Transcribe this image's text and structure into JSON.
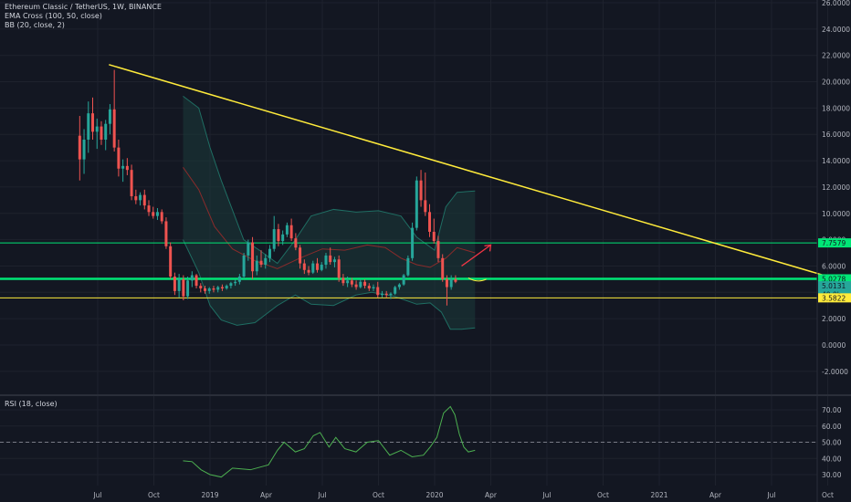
{
  "header": {
    "symbol_title": "Ethereum Classic / TetherUS, 1W, BINANCE",
    "indicator_ema": "EMA Cross (100, 50, close)",
    "indicator_bb": "BB (20, close, 2)",
    "rsi_title": "RSI (18, close)"
  },
  "colors": {
    "background": "#131722",
    "grid": "#1e222d",
    "up_candle": "#26a69a",
    "down_candle": "#ef5350",
    "trendline": "#ffeb3b",
    "support_green": "#00e676",
    "support_yellow": "#ffeb3b",
    "bb_fill": "#1b3a3a",
    "bb_line": "#1f6e63",
    "ema_line": "#8a2b2b",
    "rsi_line": "#4caf50",
    "arrow": "#f23645"
  },
  "chart_data": [
    {
      "type": "candlestick",
      "x_tick_labels": [
        "Jul",
        "Oct",
        "2019",
        "Apr",
        "Jul",
        "Oct",
        "2020",
        "Apr",
        "Jul",
        "Oct",
        "2021",
        "Apr",
        "Jul",
        "Oct"
      ],
      "y_tick_labels": [
        "26.0000",
        "24.0000",
        "22.0000",
        "20.0000",
        "18.0000",
        "16.0000",
        "14.0000",
        "12.0000",
        "10.0000",
        "8.0000",
        "6.0000",
        "4.0000",
        "2.0000",
        "0.0000",
        "-2.0000"
      ],
      "ylim": [
        -2.5,
        26
      ],
      "price_badges": [
        {
          "label": "7.7579",
          "value": 7.7579,
          "color": "#00e676"
        },
        {
          "label": "5.0278",
          "value": 5.0278,
          "color": "#00e676"
        },
        {
          "label": "5.0131",
          "value": 4.5,
          "color": "#26a69a"
        },
        {
          "label": "40 0h",
          "value": 3.85,
          "color": "#26a69a"
        },
        {
          "label": "3.5822",
          "value": 3.5822,
          "color": "#ffeb3b"
        }
      ],
      "horizontal_lines": [
        {
          "value": 7.7579,
          "color": "#00e676",
          "width": 1
        },
        {
          "value": 5.0278,
          "color": "#00e676",
          "width": 2.5
        },
        {
          "value": 3.5822,
          "color": "#ffeb3b",
          "width": 1
        }
      ],
      "trendline": {
        "from": [
          2018.55,
          21.3
        ],
        "to": [
          2021.95,
          4.2
        ]
      },
      "candles_weekly_from": 2018.42,
      "ohlc": [
        [
          15.9,
          17.4,
          12.5,
          14.1
        ],
        [
          14.1,
          16.4,
          13.0,
          15.6
        ],
        [
          15.6,
          18.5,
          14.6,
          17.6
        ],
        [
          17.6,
          18.8,
          15.6,
          16.2
        ],
        [
          16.2,
          17.2,
          14.9,
          16.6
        ],
        [
          16.6,
          17.0,
          15.2,
          15.6
        ],
        [
          15.6,
          17.1,
          14.8,
          16.8
        ],
        [
          16.8,
          18.3,
          16.0,
          17.9
        ],
        [
          17.9,
          20.9,
          14.7,
          15.0
        ],
        [
          15.0,
          15.6,
          12.8,
          13.4
        ],
        [
          13.4,
          14.1,
          12.4,
          13.6
        ],
        [
          13.6,
          14.2,
          12.9,
          13.3
        ],
        [
          13.3,
          13.7,
          11.0,
          11.3
        ],
        [
          11.3,
          11.8,
          10.7,
          11.0
        ],
        [
          11.0,
          11.6,
          10.6,
          11.4
        ],
        [
          11.4,
          11.8,
          10.3,
          10.6
        ],
        [
          10.6,
          11.0,
          9.8,
          10.1
        ],
        [
          10.1,
          10.5,
          9.6,
          9.8
        ],
        [
          9.8,
          10.4,
          9.5,
          10.1
        ],
        [
          10.1,
          10.3,
          9.2,
          9.4
        ],
        [
          9.4,
          9.7,
          7.3,
          7.5
        ],
        [
          7.5,
          7.8,
          5.0,
          5.2
        ],
        [
          5.2,
          5.5,
          3.8,
          4.1
        ],
        [
          4.1,
          5.4,
          3.6,
          5.0
        ],
        [
          5.0,
          5.3,
          3.4,
          3.7
        ],
        [
          3.7,
          5.2,
          3.5,
          4.9
        ],
        [
          4.9,
          5.6,
          4.4,
          5.3
        ],
        [
          5.3,
          5.4,
          4.3,
          4.5
        ],
        [
          4.5,
          4.7,
          4.0,
          4.3
        ],
        [
          4.3,
          4.5,
          3.9,
          4.1
        ],
        [
          4.1,
          4.4,
          3.9,
          4.3
        ],
        [
          4.3,
          4.5,
          4.0,
          4.2
        ],
        [
          4.2,
          4.5,
          4.0,
          4.4
        ],
        [
          4.4,
          4.6,
          4.1,
          4.3
        ],
        [
          4.3,
          4.6,
          4.2,
          4.5
        ],
        [
          4.5,
          4.8,
          4.3,
          4.7
        ],
        [
          4.7,
          5.0,
          4.5,
          4.8
        ],
        [
          4.8,
          5.4,
          4.6,
          5.2
        ],
        [
          5.2,
          7.0,
          5.0,
          6.8
        ],
        [
          6.8,
          8.0,
          6.4,
          7.8
        ],
        [
          7.8,
          8.2,
          5.0,
          5.6
        ],
        [
          5.6,
          6.8,
          5.3,
          6.4
        ],
        [
          6.4,
          7.2,
          5.9,
          6.1
        ],
        [
          6.1,
          6.9,
          5.8,
          6.6
        ],
        [
          6.6,
          7.6,
          6.3,
          7.3
        ],
        [
          7.3,
          9.8,
          7.1,
          8.8
        ],
        [
          8.8,
          9.2,
          7.5,
          7.9
        ],
        [
          7.9,
          8.7,
          7.6,
          8.4
        ],
        [
          8.4,
          9.3,
          8.2,
          9.1
        ],
        [
          9.1,
          9.6,
          7.9,
          8.1
        ],
        [
          8.1,
          8.5,
          7.2,
          7.4
        ],
        [
          7.4,
          7.6,
          5.8,
          6.2
        ],
        [
          6.2,
          6.5,
          5.4,
          5.7
        ],
        [
          5.7,
          6.0,
          5.3,
          5.5
        ],
        [
          5.5,
          6.4,
          5.4,
          6.2
        ],
        [
          6.2,
          6.6,
          5.5,
          5.7
        ],
        [
          5.7,
          6.3,
          5.6,
          6.1
        ],
        [
          6.1,
          7.0,
          5.8,
          6.8
        ],
        [
          6.8,
          7.4,
          6.1,
          6.3
        ],
        [
          6.3,
          6.7,
          5.9,
          6.5
        ],
        [
          6.5,
          6.8,
          4.8,
          5.1
        ],
        [
          5.1,
          5.4,
          4.5,
          4.7
        ],
        [
          4.7,
          5.2,
          4.4,
          4.9
        ],
        [
          4.9,
          5.1,
          4.4,
          4.6
        ],
        [
          4.6,
          4.9,
          4.2,
          4.4
        ],
        [
          4.4,
          5.0,
          4.3,
          4.8
        ],
        [
          4.8,
          5.0,
          4.3,
          4.5
        ],
        [
          4.5,
          4.7,
          4.1,
          4.3
        ],
        [
          4.3,
          4.6,
          4.1,
          4.4
        ],
        [
          4.4,
          4.8,
          3.6,
          3.8
        ],
        [
          3.8,
          4.1,
          3.6,
          3.9
        ],
        [
          3.9,
          4.1,
          3.6,
          3.8
        ],
        [
          3.8,
          4.0,
          3.5,
          3.9
        ],
        [
          3.9,
          4.5,
          3.8,
          4.4
        ],
        [
          4.4,
          4.7,
          4.2,
          4.6
        ],
        [
          4.6,
          5.4,
          4.5,
          5.3
        ],
        [
          5.3,
          6.8,
          5.2,
          6.6
        ],
        [
          6.6,
          9.3,
          6.4,
          8.9
        ],
        [
          8.9,
          12.8,
          8.7,
          12.5
        ],
        [
          12.5,
          13.3,
          10.5,
          11.0
        ],
        [
          11.0,
          13.1,
          9.8,
          10.1
        ],
        [
          10.1,
          10.7,
          8.2,
          8.6
        ],
        [
          8.6,
          9.6,
          7.7,
          7.9
        ],
        [
          7.9,
          8.3,
          6.3,
          6.6
        ],
        [
          6.6,
          6.9,
          4.8,
          5.0
        ],
        [
          5.0,
          5.3,
          3.0,
          4.4
        ],
        [
          4.4,
          5.3,
          4.2,
          5.0
        ],
        [
          5.0,
          5.3,
          4.7,
          4.8
        ]
      ],
      "bb_upper": [
        [
          2018.88,
          18.9
        ],
        [
          2018.95,
          18.0
        ],
        [
          2019.0,
          15.0
        ],
        [
          2019.05,
          12.5
        ],
        [
          2019.15,
          8.0
        ],
        [
          2019.22,
          7.2
        ],
        [
          2019.3,
          6.2
        ],
        [
          2019.38,
          8.0
        ],
        [
          2019.45,
          9.8
        ],
        [
          2019.55,
          10.3
        ],
        [
          2019.65,
          10.1
        ],
        [
          2019.75,
          10.2
        ],
        [
          2019.85,
          9.8
        ],
        [
          2019.92,
          8.2
        ],
        [
          2020.0,
          7.2
        ],
        [
          2020.05,
          10.5
        ],
        [
          2020.1,
          11.6
        ],
        [
          2020.18,
          11.7
        ]
      ],
      "bb_lower": [
        [
          2018.88,
          8.0
        ],
        [
          2018.95,
          5.5
        ],
        [
          2019.0,
          3.0
        ],
        [
          2019.05,
          1.9
        ],
        [
          2019.12,
          1.5
        ],
        [
          2019.2,
          1.7
        ],
        [
          2019.3,
          3.0
        ],
        [
          2019.38,
          3.8
        ],
        [
          2019.45,
          3.1
        ],
        [
          2019.55,
          3.0
        ],
        [
          2019.65,
          3.8
        ],
        [
          2019.72,
          4.0
        ],
        [
          2019.82,
          3.7
        ],
        [
          2019.92,
          3.1
        ],
        [
          2019.98,
          3.2
        ],
        [
          2020.03,
          2.5
        ],
        [
          2020.07,
          1.2
        ],
        [
          2020.12,
          1.2
        ],
        [
          2020.18,
          1.3
        ]
      ],
      "ema_cross": [
        [
          2018.88,
          13.5
        ],
        [
          2018.95,
          11.8
        ],
        [
          2019.02,
          9.0
        ],
        [
          2019.1,
          7.3
        ],
        [
          2019.2,
          6.4
        ],
        [
          2019.3,
          5.8
        ],
        [
          2019.4,
          6.6
        ],
        [
          2019.5,
          7.3
        ],
        [
          2019.6,
          7.2
        ],
        [
          2019.7,
          7.6
        ],
        [
          2019.78,
          7.4
        ],
        [
          2019.85,
          6.6
        ],
        [
          2019.92,
          6.1
        ],
        [
          2019.98,
          5.9
        ],
        [
          2020.05,
          6.6
        ],
        [
          2020.1,
          7.4
        ],
        [
          2020.18,
          7.0
        ]
      ],
      "forecast_arrow": {
        "from": [
          2020.12,
          6.0
        ],
        "to": [
          2020.25,
          7.6
        ]
      },
      "forecast_curve": {
        "from": [
          2020.15,
          5.1
        ],
        "to": [
          2020.23,
          5.0
        ]
      }
    },
    {
      "type": "line",
      "title": "RSI (18, close)",
      "y_tick_labels": [
        "70.00",
        "60.00",
        "50.00",
        "40.00",
        "30.00"
      ],
      "ylim": [
        26,
        76
      ],
      "midline": 50,
      "series": [
        {
          "values": [
            [
              2018.88,
              38.5
            ],
            [
              2018.92,
              38
            ],
            [
              2018.96,
              33
            ],
            [
              2019.0,
              30
            ],
            [
              2019.05,
              28.5
            ],
            [
              2019.1,
              34
            ],
            [
              2019.18,
              33
            ],
            [
              2019.26,
              36
            ],
            [
              2019.3,
              45
            ],
            [
              2019.33,
              50
            ],
            [
              2019.38,
              44
            ],
            [
              2019.42,
              46
            ],
            [
              2019.46,
              54
            ],
            [
              2019.49,
              56
            ],
            [
              2019.53,
              47
            ],
            [
              2019.56,
              53
            ],
            [
              2019.6,
              46
            ],
            [
              2019.65,
              44
            ],
            [
              2019.7,
              50
            ],
            [
              2019.75,
              51
            ],
            [
              2019.8,
              42
            ],
            [
              2019.85,
              45
            ],
            [
              2019.9,
              41
            ],
            [
              2019.95,
              42
            ],
            [
              2019.98,
              47
            ],
            [
              2020.01,
              53
            ],
            [
              2020.04,
              68
            ],
            [
              2020.07,
              72
            ],
            [
              2020.09,
              67
            ],
            [
              2020.11,
              55
            ],
            [
              2020.13,
              47
            ],
            [
              2020.15,
              44
            ],
            [
              2020.18,
              45
            ]
          ]
        }
      ]
    }
  ]
}
